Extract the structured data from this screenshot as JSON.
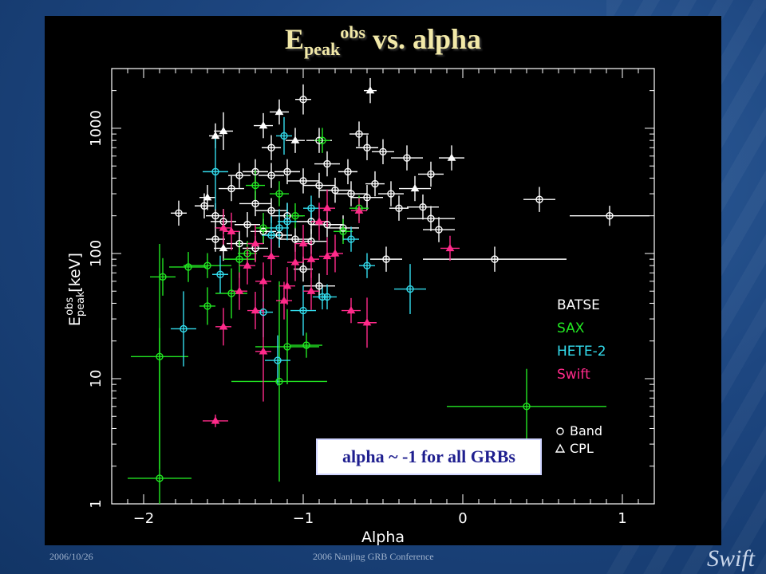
{
  "slide": {
    "title_main": "E",
    "title_sub": "peak",
    "title_sup": "obs",
    "title_rest": " vs. alpha",
    "footer_left": "2006/10/26",
    "footer_mid": "2006 Nanjing GRB Conference",
    "footer_logo": "Swift",
    "annotation": "alpha ~ -1 for all GRBs"
  },
  "chart_data": {
    "type": "scatter",
    "xlabel": "Alpha",
    "ylabel_main": "E",
    "ylabel_sub": "peak",
    "ylabel_sup": "obs",
    "ylabel_unit": "[keV]",
    "xlim": [
      -2.2,
      1.2
    ],
    "ylim": [
      1,
      3000
    ],
    "yscale": "log",
    "xticks": [
      -2,
      -1,
      0,
      1
    ],
    "xtick_labels": [
      "−2",
      "−1",
      "0",
      "1"
    ],
    "yticks": [
      1,
      10,
      100,
      1000
    ],
    "ytick_labels": [
      "1",
      "10",
      "100",
      "1000"
    ],
    "legend_position": "right",
    "markers_legend": [
      {
        "symbol": "circle",
        "label": "Band"
      },
      {
        "symbol": "triangle",
        "label": "CPL"
      }
    ],
    "series": [
      {
        "name": "BATSE",
        "color": "#ffffff",
        "points": [
          [
            -1.0,
            1700,
            "c",
            0.05,
            0.12
          ],
          [
            -0.58,
            2000,
            "t",
            0.04,
            0.1
          ],
          [
            -1.15,
            1350,
            "t",
            0.06,
            0.1
          ],
          [
            -1.5,
            950,
            "t",
            0.06,
            0.15
          ],
          [
            -0.65,
            900,
            "c",
            0.06,
            0.1
          ],
          [
            -0.6,
            700,
            "c",
            0.07,
            0.1
          ],
          [
            -0.5,
            650,
            "c",
            0.07,
            0.1
          ],
          [
            -0.35,
            580,
            "c",
            0.1,
            0.1
          ],
          [
            -0.07,
            580,
            "t",
            0.08,
            0.1
          ],
          [
            -0.2,
            430,
            "c",
            0.08,
            0.1
          ],
          [
            -0.3,
            330,
            "t",
            0.1,
            0.1
          ],
          [
            -0.45,
            300,
            "c",
            0.08,
            0.1
          ],
          [
            0.48,
            270,
            "c",
            0.1,
            0.1
          ],
          [
            0.92,
            200,
            "c",
            0.25,
            0.08
          ],
          [
            -0.25,
            235,
            "c",
            0.1,
            0.1
          ],
          [
            -0.2,
            190,
            "c",
            0.15,
            0.1
          ],
          [
            -0.15,
            155,
            "c",
            0.1,
            0.1
          ],
          [
            0.2,
            90,
            "c",
            0.45,
            0.1
          ],
          [
            -0.48,
            90,
            "c",
            0.1,
            0.1
          ],
          [
            -1.78,
            210,
            "c",
            0.05,
            0.1
          ],
          [
            -1.62,
            240,
            "c",
            0.06,
            0.1
          ],
          [
            -1.6,
            280,
            "t",
            0.05,
            0.1
          ],
          [
            -1.55,
            200,
            "c",
            0.06,
            0.1
          ],
          [
            -1.5,
            180,
            "c",
            0.08,
            0.1
          ],
          [
            -1.45,
            330,
            "c",
            0.08,
            0.1
          ],
          [
            -1.4,
            420,
            "c",
            0.07,
            0.1
          ],
          [
            -1.3,
            450,
            "c",
            0.08,
            0.1
          ],
          [
            -1.2,
            420,
            "c",
            0.08,
            0.1
          ],
          [
            -1.1,
            450,
            "c",
            0.08,
            0.1
          ],
          [
            -1.0,
            380,
            "c",
            0.1,
            0.1
          ],
          [
            -0.9,
            350,
            "c",
            0.1,
            0.1
          ],
          [
            -0.8,
            320,
            "c",
            0.1,
            0.1
          ],
          [
            -0.7,
            300,
            "c",
            0.1,
            0.1
          ],
          [
            -0.6,
            280,
            "c",
            0.1,
            0.1
          ],
          [
            -1.3,
            250,
            "c",
            0.1,
            0.1
          ],
          [
            -1.2,
            220,
            "c",
            0.1,
            0.1
          ],
          [
            -1.1,
            200,
            "c",
            0.1,
            0.1
          ],
          [
            -0.95,
            180,
            "c",
            0.1,
            0.1
          ],
          [
            -0.85,
            170,
            "c",
            0.1,
            0.1
          ],
          [
            -0.75,
            160,
            "c",
            0.1,
            0.1
          ],
          [
            -1.35,
            170,
            "c",
            0.08,
            0.1
          ],
          [
            -1.25,
            150,
            "c",
            0.08,
            0.1
          ],
          [
            -1.15,
            140,
            "c",
            0.08,
            0.1
          ],
          [
            -1.05,
            130,
            "c",
            0.1,
            0.1
          ],
          [
            -0.95,
            125,
            "c",
            0.1,
            0.1
          ],
          [
            -1.4,
            120,
            "c",
            0.08,
            0.1
          ],
          [
            -1.3,
            110,
            "c",
            0.08,
            0.1
          ],
          [
            -1.5,
            110,
            "t",
            0.06,
            0.1
          ],
          [
            -1.55,
            130,
            "c",
            0.06,
            0.1
          ],
          [
            -0.9,
            800,
            "c",
            0.08,
            0.1
          ],
          [
            -1.05,
            800,
            "t",
            0.06,
            0.1
          ],
          [
            -1.25,
            1050,
            "t",
            0.06,
            0.1
          ],
          [
            -1.2,
            700,
            "c",
            0.06,
            0.1
          ],
          [
            -0.85,
            520,
            "c",
            0.08,
            0.1
          ],
          [
            -0.72,
            450,
            "c",
            0.06,
            0.1
          ],
          [
            -0.55,
            360,
            "c",
            0.06,
            0.1
          ],
          [
            -0.4,
            230,
            "c",
            0.06,
            0.1
          ],
          [
            -1.0,
            75,
            "c",
            0.06,
            0.1
          ],
          [
            -0.9,
            55,
            "c",
            0.1,
            0.1
          ],
          [
            -1.55,
            870,
            "t",
            0.04,
            0.1
          ]
        ]
      },
      {
        "name": "SAX",
        "color": "#22e622",
        "points": [
          [
            -1.88,
            65,
            "c",
            0.08,
            0.15
          ],
          [
            -1.72,
            78,
            "c",
            0.12,
            0.12
          ],
          [
            -1.6,
            80,
            "c",
            0.15,
            0.1
          ],
          [
            -1.6,
            38,
            "c",
            0.05,
            0.15
          ],
          [
            -1.9,
            15,
            "c",
            0.18,
            0.9
          ],
          [
            -1.9,
            1.6,
            "c",
            0.2,
            1.2
          ],
          [
            -1.15,
            9.5,
            "c",
            0.3,
            0.8
          ],
          [
            -1.1,
            18,
            "c",
            0.2,
            0.3
          ],
          [
            -0.98,
            18.5,
            "c",
            0.1,
            0.1
          ],
          [
            0.4,
            6,
            "c",
            0.5,
            0.3
          ],
          [
            -1.45,
            48,
            "c",
            0.1,
            0.2
          ],
          [
            -1.4,
            90,
            "c",
            0.1,
            0.15
          ],
          [
            -1.3,
            350,
            "c",
            0.06,
            0.12
          ],
          [
            -1.25,
            160,
            "c",
            0.05,
            0.12
          ],
          [
            -1.05,
            200,
            "c",
            0.06,
            0.1
          ],
          [
            -0.88,
            800,
            "c",
            0.05,
            0.1
          ],
          [
            -0.65,
            230,
            "c",
            0.06,
            0.1
          ],
          [
            -0.75,
            150,
            "c",
            0.06,
            0.1
          ],
          [
            -1.15,
            300,
            "c",
            0.06,
            0.1
          ],
          [
            -1.35,
            100,
            "c",
            0.06,
            0.1
          ]
        ]
      },
      {
        "name": "HETE-2",
        "color": "#33ddee",
        "points": [
          [
            -1.12,
            870,
            "c",
            0.05,
            0.15
          ],
          [
            -1.55,
            450,
            "c",
            0.08,
            0.3
          ],
          [
            -1.75,
            25,
            "c",
            0.08,
            0.3
          ],
          [
            -1.16,
            14,
            "c",
            0.08,
            0.2
          ],
          [
            -0.33,
            52,
            "c",
            0.1,
            0.2
          ],
          [
            -1.52,
            68,
            "c",
            0.05,
            0.15
          ],
          [
            -1.25,
            34,
            "c",
            0.06,
            0.2
          ],
          [
            -1.0,
            35,
            "c",
            0.08,
            0.2
          ],
          [
            -0.88,
            45,
            "c",
            0.06,
            0.1
          ],
          [
            -0.85,
            45,
            "c",
            0.06,
            0.1
          ],
          [
            -1.2,
            140,
            "c",
            0.06,
            0.15
          ],
          [
            -1.15,
            160,
            "c",
            0.06,
            0.15
          ],
          [
            -1.1,
            180,
            "c",
            0.06,
            0.15
          ],
          [
            -0.6,
            80,
            "c",
            0.05,
            0.1
          ],
          [
            -0.7,
            130,
            "c",
            0.05,
            0.1
          ],
          [
            -0.95,
            230,
            "c",
            0.05,
            0.1
          ]
        ]
      },
      {
        "name": "Swift",
        "color": "#ff2a8a",
        "points": [
          [
            -1.55,
            4.6,
            "t",
            0.08,
            0.05
          ],
          [
            -1.25,
            16.5,
            "t",
            0.05,
            0.4
          ],
          [
            -0.6,
            28,
            "t",
            0.06,
            0.2
          ],
          [
            -0.08,
            110,
            "t",
            0.06,
            0.1
          ],
          [
            -0.7,
            35,
            "t",
            0.06,
            0.1
          ],
          [
            -1.5,
            26,
            "t",
            0.05,
            0.15
          ],
          [
            -1.4,
            50,
            "t",
            0.05,
            0.15
          ],
          [
            -1.35,
            80,
            "t",
            0.05,
            0.15
          ],
          [
            -1.3,
            120,
            "t",
            0.05,
            0.15
          ],
          [
            -1.2,
            95,
            "t",
            0.05,
            0.15
          ],
          [
            -1.05,
            85,
            "t",
            0.05,
            0.15
          ],
          [
            -0.95,
            90,
            "t",
            0.05,
            0.15
          ],
          [
            -0.85,
            95,
            "t",
            0.05,
            0.15
          ],
          [
            -0.8,
            100,
            "t",
            0.05,
            0.15
          ],
          [
            -1.25,
            60,
            "t",
            0.05,
            0.15
          ],
          [
            -1.1,
            55,
            "t",
            0.05,
            0.15
          ],
          [
            -0.95,
            50,
            "t",
            0.05,
            0.15
          ],
          [
            -0.9,
            180,
            "t",
            0.05,
            0.15
          ],
          [
            -0.85,
            230,
            "t",
            0.05,
            0.15
          ],
          [
            -1.45,
            150,
            "t",
            0.05,
            0.15
          ],
          [
            -1.5,
            160,
            "t",
            0.05,
            0.15
          ],
          [
            -1.3,
            35,
            "t",
            0.05,
            0.15
          ],
          [
            -0.65,
            220,
            "t",
            0.05,
            0.1
          ],
          [
            -1.0,
            120,
            "t",
            0.05,
            0.15
          ],
          [
            -1.12,
            42,
            "t",
            0.05,
            0.15
          ]
        ]
      }
    ]
  }
}
